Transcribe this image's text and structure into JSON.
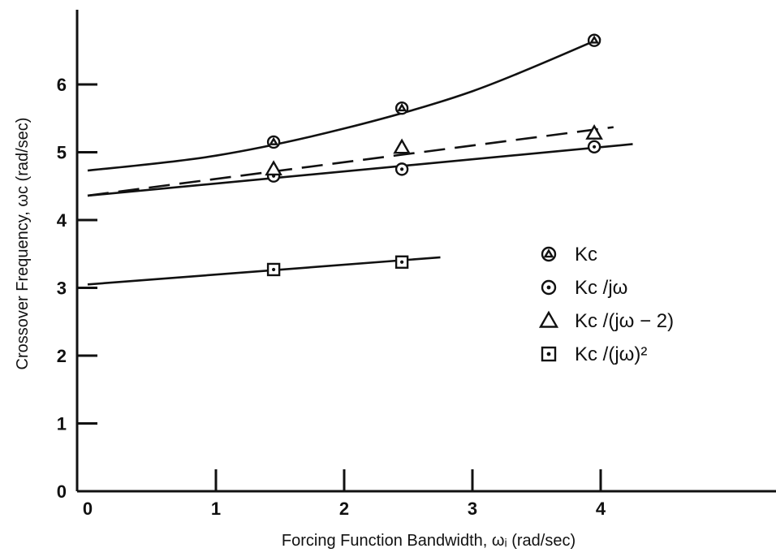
{
  "chart_data": {
    "type": "line",
    "xlabel": "Forcing Function Bandwidth, ωᵢ (rad/sec)",
    "ylabel": "Crossover Frequency, ωc  (rad/sec)",
    "xlim": [
      0,
      5.3
    ],
    "ylim": [
      0,
      7.0
    ],
    "x_ticks": [
      {
        "value": 0,
        "label": "0"
      },
      {
        "value": 1,
        "label": "1"
      },
      {
        "value": 2,
        "label": "2"
      },
      {
        "value": 3,
        "label": "3"
      },
      {
        "value": 4,
        "label": "4"
      }
    ],
    "y_ticks": [
      {
        "value": 0,
        "label": "0"
      },
      {
        "value": 1,
        "label": "1"
      },
      {
        "value": 2,
        "label": "2"
      },
      {
        "value": 3,
        "label": "3"
      },
      {
        "value": 4,
        "label": "4"
      },
      {
        "value": 5,
        "label": "5"
      },
      {
        "value": 6,
        "label": "6"
      }
    ],
    "grid": false,
    "legend_position": "right",
    "series": [
      {
        "name": "Kc",
        "marker": "circle-triangle",
        "line_style": "solid",
        "points": [
          [
            1.45,
            5.15
          ],
          [
            2.45,
            5.65
          ],
          [
            3.95,
            6.65
          ]
        ],
        "fit": [
          [
            0,
            4.73
          ],
          [
            1,
            4.95
          ],
          [
            2,
            5.35
          ],
          [
            3,
            5.9
          ],
          [
            4,
            6.68
          ]
        ]
      },
      {
        "name": "Kc /jω",
        "marker": "circle-dot",
        "line_style": "solid",
        "points": [
          [
            1.45,
            4.65
          ],
          [
            2.45,
            4.75
          ],
          [
            3.95,
            5.08
          ]
        ],
        "fit": [
          [
            0,
            4.36
          ],
          [
            4.25,
            5.12
          ]
        ]
      },
      {
        "name": "Kc /(jω − 2)",
        "marker": "triangle",
        "line_style": "dashed",
        "points": [
          [
            1.45,
            4.75
          ],
          [
            2.45,
            5.07
          ],
          [
            3.95,
            5.28
          ]
        ],
        "fit": [
          [
            0,
            4.36
          ],
          [
            4.1,
            5.37
          ]
        ]
      },
      {
        "name": "Kc /(jω)²",
        "marker": "square-dot",
        "line_style": "solid",
        "points": [
          [
            1.45,
            3.27
          ],
          [
            2.45,
            3.38
          ]
        ],
        "fit": [
          [
            0,
            3.05
          ],
          [
            2.75,
            3.45
          ]
        ]
      }
    ]
  }
}
